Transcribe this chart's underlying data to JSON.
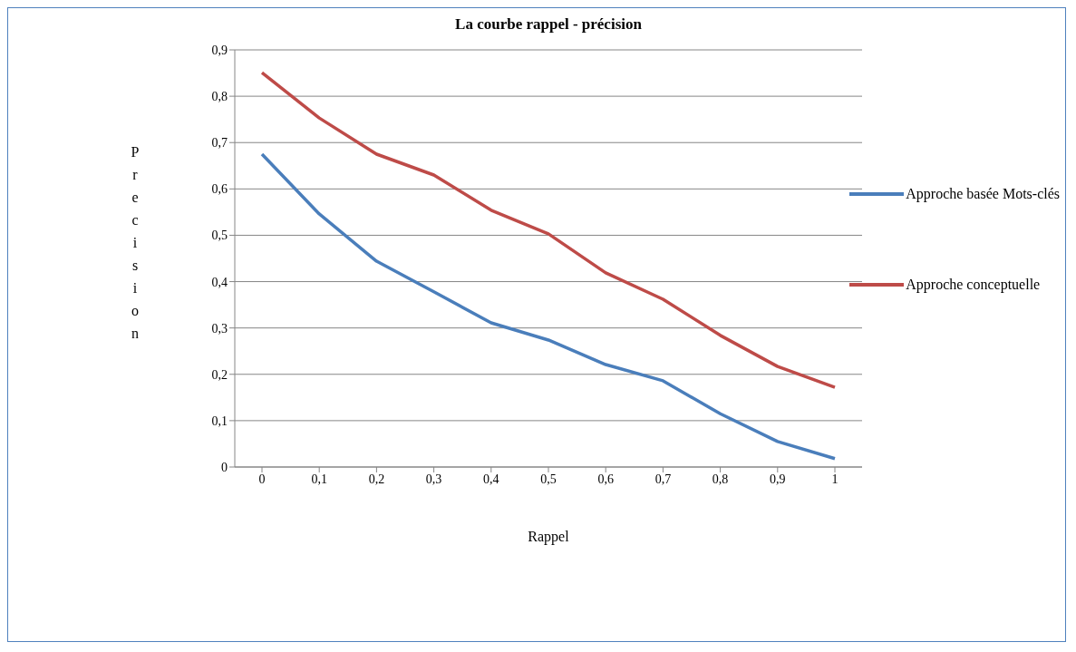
{
  "chart_data": {
    "type": "line",
    "title": "La courbe rappel - précision",
    "xlabel": "Rappel",
    "ylabel": "Precision",
    "categories": [
      "0",
      "0,1",
      "0,2",
      "0,3",
      "0,4",
      "0,5",
      "0,6",
      "0,7",
      "0,8",
      "0,9",
      "1"
    ],
    "series": [
      {
        "name": "Approche basée Mots-clés",
        "color": "#4a7ebb",
        "values": [
          0.675,
          0.546,
          0.444,
          0.378,
          0.311,
          0.274,
          0.221,
          0.186,
          0.115,
          0.055,
          0.018
        ]
      },
      {
        "name": "Approche conceptuelle",
        "color": "#be4b48",
        "values": [
          0.851,
          0.753,
          0.675,
          0.63,
          0.554,
          0.503,
          0.419,
          0.362,
          0.284,
          0.217,
          0.172
        ]
      }
    ],
    "ylim": [
      0,
      0.9
    ],
    "yticks": [
      0,
      {
        "value": 0.1,
        "label": "0,1"
      },
      {
        "value": 0.2,
        "label": "0,2"
      },
      {
        "value": 0.3,
        "label": "0,3"
      },
      {
        "value": 0.4,
        "label": "0,4"
      },
      {
        "value": 0.5,
        "label": "0,5"
      },
      {
        "value": 0.6,
        "label": "0,6"
      },
      {
        "value": 0.7,
        "label": "0,7"
      },
      {
        "value": 0.8,
        "label": "0,8"
      },
      {
        "value": 0.9,
        "label": "0,9"
      }
    ],
    "grid": "y",
    "legend": "right",
    "marker": "none",
    "line_style": "solid"
  }
}
